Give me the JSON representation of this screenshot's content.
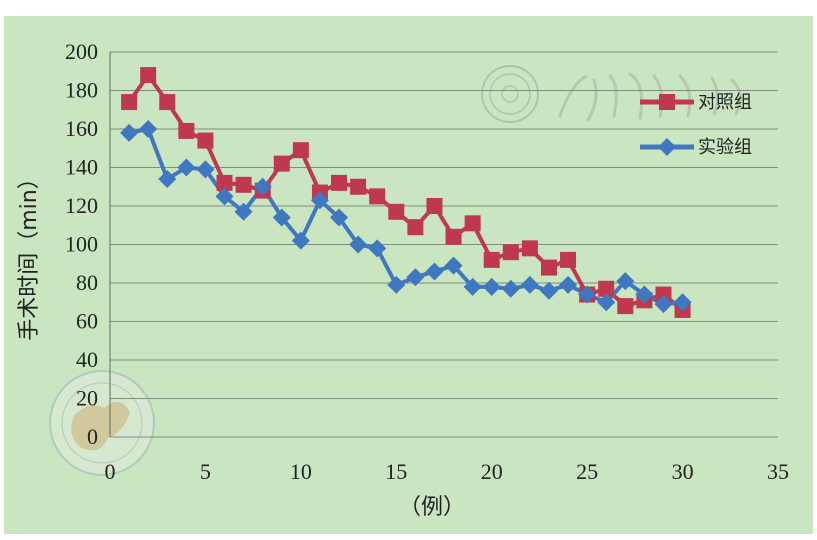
{
  "chart_data": {
    "type": "line",
    "title": "",
    "xlabel": "（例）",
    "ylabel": "手术时间（min）",
    "xlim": [
      0,
      35
    ],
    "ylim": [
      0,
      200
    ],
    "x_ticks": [
      0,
      5,
      10,
      15,
      20,
      25,
      30,
      35
    ],
    "y_ticks": [
      0,
      20,
      40,
      60,
      80,
      100,
      120,
      140,
      160,
      180,
      200
    ],
    "grid": "horizontal",
    "legend_position": "top-right",
    "x": [
      1,
      2,
      3,
      4,
      5,
      6,
      7,
      8,
      9,
      10,
      11,
      12,
      13,
      14,
      15,
      16,
      17,
      18,
      19,
      20,
      21,
      22,
      23,
      24,
      25,
      26,
      27,
      28,
      29,
      30
    ],
    "series": [
      {
        "name": "对照组",
        "color": "#c0384f",
        "marker": "square",
        "values": [
          174,
          188,
          174,
          159,
          154,
          132,
          131,
          128,
          142,
          149,
          127,
          132,
          130,
          125,
          117,
          109,
          120,
          104,
          111,
          92,
          96,
          98,
          88,
          92,
          74,
          77,
          68,
          71,
          74,
          66
        ]
      },
      {
        "name": "实验组",
        "color": "#3f78c0",
        "marker": "diamond",
        "values": [
          158,
          160,
          134,
          140,
          139,
          125,
          117,
          130,
          114,
          102,
          123,
          114,
          100,
          98,
          79,
          83,
          86,
          89,
          78,
          78,
          77,
          79,
          76,
          79,
          74,
          70,
          81,
          74,
          69,
          70
        ]
      }
    ]
  }
}
